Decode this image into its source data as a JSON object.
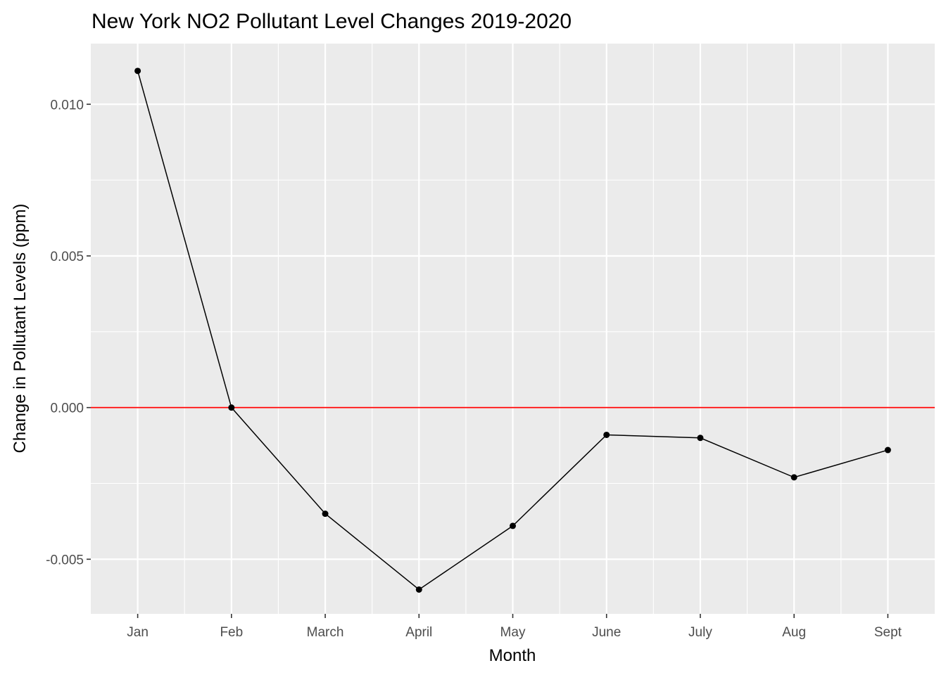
{
  "chart_data": {
    "type": "line",
    "title": "New York NO2 Pollutant Level Changes 2019-2020",
    "xlabel": "Month",
    "ylabel": "Change in Pollutant Levels (ppm)",
    "categories": [
      "Jan",
      "Feb",
      "March",
      "April",
      "May",
      "June",
      "July",
      "Aug",
      "Sept"
    ],
    "series": [
      {
        "values": [
          0.0111,
          0.0,
          -0.0035,
          -0.006,
          -0.0039,
          -0.0009,
          -0.001,
          -0.0023,
          -0.0014
        ]
      }
    ],
    "ylim": [
      -0.0068,
      0.012
    ],
    "yticks": [
      -0.005,
      0.0,
      0.005,
      0.01
    ],
    "ytick_labels": [
      "-0.005",
      "0.000",
      "0.005",
      "0.010"
    ],
    "reference_line": {
      "y": 0.0,
      "color": "#ff0000"
    },
    "grid": true,
    "legend": "none",
    "colors": {
      "panel": "#ebebeb",
      "grid": "#ffffff",
      "line": "#000000",
      "points": "#000000"
    }
  }
}
